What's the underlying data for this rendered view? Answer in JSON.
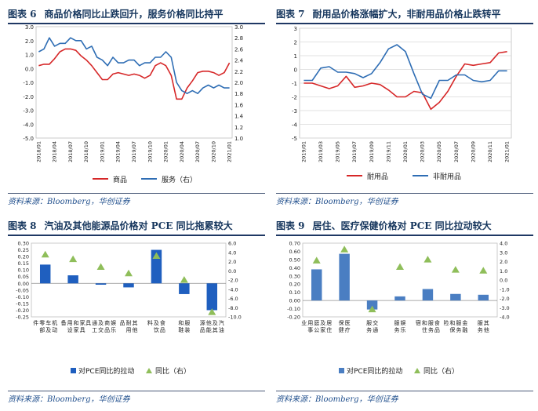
{
  "source_note": "资料来源：Bloomberg，华创证券",
  "chart_data": [
    {
      "id": "fig6",
      "figure_label": "图表 6",
      "title": "商品价格同比止跌回升，服务价格同比持平",
      "type": "line",
      "x": [
        "2018/01",
        "2018/02",
        "2018/03",
        "2018/04",
        "2018/05",
        "2018/06",
        "2018/07",
        "2018/08",
        "2018/09",
        "2018/10",
        "2018/11",
        "2018/12",
        "2019/01",
        "2019/02",
        "2019/03",
        "2019/04",
        "2019/05",
        "2019/06",
        "2019/07",
        "2019/08",
        "2019/09",
        "2019/10",
        "2019/11",
        "2019/12",
        "2020/01",
        "2020/02",
        "2020/03",
        "2020/04",
        "2020/05",
        "2020/06",
        "2020/07",
        "2020/08",
        "2020/09",
        "2020/10",
        "2020/11",
        "2020/12",
        "2021/01"
      ],
      "xticks": [
        "2018/01",
        "2018/04",
        "2018/07",
        "2018/10",
        "2019/01",
        "2019/04",
        "2019/07",
        "2019/10",
        "2020/01",
        "2020/04",
        "2020/07",
        "2020/10",
        "2021/01"
      ],
      "ylim_left": [
        -5.0,
        3.0
      ],
      "yticks_left": [
        "3.0",
        "2.0",
        "1.0",
        "0.0",
        "-1.0",
        "-2.0",
        "-3.0",
        "-4.0",
        "-5.0"
      ],
      "ylim_right": [
        1.0,
        3.0
      ],
      "yticks_right": [
        "3.0",
        "2.8",
        "2.6",
        "2.4",
        "2.2",
        "2.0",
        "1.8",
        "1.6",
        "1.4",
        "1.2",
        "1.0"
      ],
      "series": [
        {
          "name": "商品",
          "axis": "left",
          "color": "#d62728",
          "values": [
            0.2,
            0.3,
            0.3,
            0.7,
            1.2,
            1.4,
            1.4,
            1.3,
            0.9,
            0.6,
            0.2,
            -0.3,
            -0.8,
            -0.8,
            -0.4,
            -0.3,
            -0.4,
            -0.5,
            -0.4,
            -0.5,
            -0.7,
            -0.5,
            0.2,
            0.4,
            0.2,
            -0.5,
            -2.2,
            -2.2,
            -1.4,
            -0.9,
            -0.3,
            -0.2,
            -0.2,
            -0.3,
            -0.5,
            -0.3,
            0.4
          ]
        },
        {
          "name": "服务（右）",
          "axis": "right",
          "color": "#2e6db4",
          "values": [
            2.55,
            2.6,
            2.8,
            2.65,
            2.7,
            2.7,
            2.8,
            2.75,
            2.75,
            2.6,
            2.65,
            2.45,
            2.4,
            2.3,
            2.45,
            2.35,
            2.35,
            2.4,
            2.4,
            2.3,
            2.35,
            2.35,
            2.45,
            2.45,
            2.55,
            2.45,
            2.0,
            1.85,
            1.8,
            1.85,
            1.8,
            1.9,
            1.95,
            1.9,
            1.95,
            1.9,
            1.9
          ]
        }
      ],
      "legend": [
        "商品",
        "服务（右）"
      ]
    },
    {
      "id": "fig7",
      "figure_label": "图表 7",
      "title": "耐用品价格涨幅扩大，非耐用品价格止跌转平",
      "type": "line",
      "x": [
        "2019/01",
        "2019/02",
        "2019/03",
        "2019/04",
        "2019/05",
        "2019/06",
        "2019/07",
        "2019/08",
        "2019/09",
        "2019/10",
        "2019/11",
        "2019/12",
        "2020/01",
        "2020/02",
        "2020/03",
        "2020/04",
        "2020/05",
        "2020/06",
        "2020/07",
        "2020/08",
        "2020/09",
        "2020/10",
        "2020/11",
        "2020/12",
        "2021/01"
      ],
      "xticks": [
        "2019/01",
        "2019/03",
        "2019/05",
        "2019/07",
        "2019/09",
        "2019/11",
        "2020/01",
        "2020/03",
        "2020/05",
        "2020/07",
        "2020/09",
        "2020/11",
        "2021/01"
      ],
      "ylim": [
        -5,
        3
      ],
      "yticks": [
        "3",
        "2",
        "1",
        "0",
        "-1",
        "-2",
        "-3",
        "-4",
        "-5"
      ],
      "series": [
        {
          "name": "耐用品",
          "color": "#d62728",
          "values": [
            -1.0,
            -1.0,
            -1.2,
            -1.4,
            -1.2,
            -0.5,
            -1.3,
            -1.2,
            -1.0,
            -1.1,
            -1.5,
            -2.0,
            -2.0,
            -1.6,
            -1.7,
            -2.9,
            -2.4,
            -1.6,
            -0.5,
            0.4,
            0.3,
            0.4,
            0.5,
            1.2,
            1.3
          ]
        },
        {
          "name": "非耐用品",
          "color": "#2e6db4",
          "values": [
            -0.8,
            -0.8,
            0.1,
            0.2,
            -0.2,
            -0.2,
            -0.3,
            -0.6,
            -0.3,
            0.5,
            1.5,
            1.8,
            1.3,
            -0.3,
            -1.8,
            -2.1,
            -0.8,
            -0.8,
            -0.4,
            -0.4,
            -0.8,
            -0.9,
            -0.8,
            -0.1,
            -0.1
          ]
        }
      ],
      "legend": [
        "耐用品",
        "非耐用品"
      ]
    },
    {
      "id": "fig8",
      "figure_label": "图表 8",
      "title": "汽油及其他能源品价格对 PCE 同比拖累较大",
      "type": "bar",
      "categories": [
        "机动车及零部件",
        "家具和家用设备",
        "娱乐商品及交通工具",
        "其他耐用品",
        "食品及饮料",
        "服装和鞋",
        "汽油及其他能源品"
      ],
      "ylim_left": [
        -0.25,
        0.3
      ],
      "yticks_left": [
        "0.30",
        "0.25",
        "0.20",
        "0.15",
        "0.10",
        "0.05",
        "0.00",
        "-0.05",
        "-0.10",
        "-0.15",
        "-0.20",
        "-0.25"
      ],
      "ylim_right": [
        -10.0,
        6.0
      ],
      "yticks_right": [
        "6.0",
        "4.0",
        "2.0",
        "0.0",
        "-2.0",
        "-4.0",
        "-6.0",
        "-8.0",
        "-10.0"
      ],
      "series": [
        {
          "name": "对PCE同比的拉动",
          "axis": "left",
          "kind": "bar",
          "color": "#1f5fbf",
          "values": [
            0.14,
            0.06,
            -0.01,
            -0.03,
            0.25,
            -0.08,
            -0.2
          ]
        },
        {
          "name": "同比（右）",
          "axis": "right",
          "kind": "marker",
          "color": "#8fbe5a",
          "values": [
            3.5,
            2.5,
            0.8,
            -0.6,
            3.2,
            -2.0,
            -9.0
          ]
        }
      ],
      "legend": [
        "对PCE同比的拉动",
        "同比（右）"
      ]
    },
    {
      "id": "fig9",
      "figure_label": "图表 9",
      "title": "居住、医疗保健价格对 PCE 同比拉动较大",
      "type": "bar",
      "categories": [
        "居住及家庭公用事业",
        "医疗保健",
        "交通服务",
        "娱乐服务",
        "食品服务和住宿",
        "金融服务和保险",
        "其他服务"
      ],
      "ylim_left": [
        -0.2,
        0.7
      ],
      "yticks_left": [
        "0.70",
        "0.60",
        "0.50",
        "0.40",
        "0.30",
        "0.20",
        "0.10",
        "0.00",
        "-0.10",
        "-0.20"
      ],
      "ylim_right": [
        -4.0,
        4.0
      ],
      "yticks_right": [
        "4.0",
        "3.0",
        "2.0",
        "1.0",
        "0.0",
        "-1.0",
        "-2.0",
        "-3.0",
        "-4.0"
      ],
      "series": [
        {
          "name": "对PCE同比的拉动",
          "axis": "left",
          "kind": "bar",
          "color": "#4a7ec2",
          "values": [
            0.38,
            0.57,
            -0.11,
            0.05,
            0.14,
            0.08,
            0.07
          ]
        },
        {
          "name": "同比（右）",
          "axis": "right",
          "kind": "marker",
          "color": "#8fbe5a",
          "values": [
            2.1,
            3.3,
            -3.2,
            1.4,
            2.2,
            1.1,
            1.0
          ]
        }
      ],
      "legend": [
        "对PCE同比的拉动",
        "同比（右）"
      ]
    }
  ]
}
